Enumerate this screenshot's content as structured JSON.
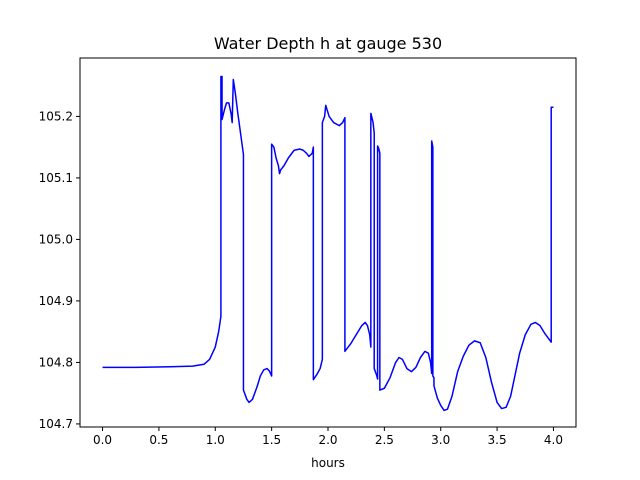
{
  "chart_data": {
    "type": "line",
    "title": "Water Depth h at gauge 530",
    "xlabel": "hours",
    "ylabel": "",
    "xlim": [
      -0.2,
      4.2
    ],
    "ylim": [
      104.695,
      105.295
    ],
    "x_ticks": [
      0.0,
      0.5,
      1.0,
      1.5,
      2.0,
      2.5,
      3.0,
      3.5,
      4.0
    ],
    "x_tick_labels": [
      "0.0",
      "0.5",
      "1.0",
      "1.5",
      "2.0",
      "2.5",
      "3.0",
      "3.5",
      "4.0"
    ],
    "y_ticks": [
      104.7,
      104.8,
      104.9,
      105.0,
      105.1,
      105.2
    ],
    "y_tick_labels": [
      "104.7",
      "104.8",
      "104.9",
      "105.0",
      "105.1",
      "105.2"
    ],
    "grid": false,
    "series": [
      {
        "color": "#0000ff",
        "points": [
          [
            0.0,
            104.792
          ],
          [
            0.3,
            104.792
          ],
          [
            0.6,
            104.793
          ],
          [
            0.8,
            104.794
          ],
          [
            0.9,
            104.797
          ],
          [
            0.95,
            104.805
          ],
          [
            1.0,
            104.825
          ],
          [
            1.03,
            104.85
          ],
          [
            1.05,
            104.875
          ],
          [
            1.05,
            105.265
          ],
          [
            1.06,
            105.265
          ],
          [
            1.06,
            105.195
          ],
          [
            1.08,
            105.21
          ],
          [
            1.1,
            105.222
          ],
          [
            1.12,
            105.222
          ],
          [
            1.14,
            105.205
          ],
          [
            1.15,
            105.19
          ],
          [
            1.16,
            105.26
          ],
          [
            1.18,
            105.235
          ],
          [
            1.2,
            105.205
          ],
          [
            1.23,
            105.165
          ],
          [
            1.25,
            105.138
          ],
          [
            1.25,
            104.755
          ],
          [
            1.28,
            104.74
          ],
          [
            1.3,
            104.735
          ],
          [
            1.33,
            104.74
          ],
          [
            1.37,
            104.76
          ],
          [
            1.4,
            104.778
          ],
          [
            1.43,
            104.788
          ],
          [
            1.46,
            104.79
          ],
          [
            1.48,
            104.786
          ],
          [
            1.5,
            104.778
          ],
          [
            1.5,
            105.155
          ],
          [
            1.52,
            105.15
          ],
          [
            1.54,
            105.132
          ],
          [
            1.56,
            105.12
          ],
          [
            1.57,
            105.107
          ],
          [
            1.58,
            105.113
          ],
          [
            1.61,
            105.12
          ],
          [
            1.65,
            105.133
          ],
          [
            1.7,
            105.145
          ],
          [
            1.75,
            105.147
          ],
          [
            1.78,
            105.145
          ],
          [
            1.81,
            105.14
          ],
          [
            1.83,
            105.135
          ],
          [
            1.86,
            105.14
          ],
          [
            1.87,
            105.15
          ],
          [
            1.87,
            104.772
          ],
          [
            1.9,
            104.78
          ],
          [
            1.93,
            104.79
          ],
          [
            1.95,
            104.805
          ],
          [
            1.95,
            105.19
          ],
          [
            1.97,
            105.2
          ],
          [
            1.98,
            105.218
          ],
          [
            1.99,
            105.212
          ],
          [
            2.01,
            105.2
          ],
          [
            2.05,
            105.19
          ],
          [
            2.1,
            105.185
          ],
          [
            2.13,
            105.19
          ],
          [
            2.15,
            105.198
          ],
          [
            2.15,
            104.818
          ],
          [
            2.2,
            104.83
          ],
          [
            2.25,
            104.845
          ],
          [
            2.3,
            104.86
          ],
          [
            2.33,
            104.865
          ],
          [
            2.35,
            104.86
          ],
          [
            2.37,
            104.845
          ],
          [
            2.38,
            104.825
          ],
          [
            2.38,
            105.205
          ],
          [
            2.4,
            105.19
          ],
          [
            2.41,
            105.173
          ],
          [
            2.41,
            104.79
          ],
          [
            2.43,
            104.78
          ],
          [
            2.44,
            104.773
          ],
          [
            2.44,
            105.152
          ],
          [
            2.45,
            105.148
          ],
          [
            2.46,
            105.14
          ],
          [
            2.46,
            104.755
          ],
          [
            2.5,
            104.758
          ],
          [
            2.55,
            104.775
          ],
          [
            2.6,
            104.8
          ],
          [
            2.63,
            104.808
          ],
          [
            2.66,
            104.805
          ],
          [
            2.7,
            104.79
          ],
          [
            2.74,
            104.785
          ],
          [
            2.78,
            104.792
          ],
          [
            2.82,
            104.808
          ],
          [
            2.86,
            104.818
          ],
          [
            2.89,
            104.815
          ],
          [
            2.91,
            104.8
          ],
          [
            2.92,
            104.782
          ],
          [
            2.92,
            105.16
          ],
          [
            2.93,
            105.15
          ],
          [
            2.93,
            104.778
          ],
          [
            2.94,
            104.775
          ],
          [
            2.94,
            104.762
          ],
          [
            2.97,
            104.742
          ],
          [
            3.0,
            104.73
          ],
          [
            3.03,
            104.722
          ],
          [
            3.06,
            104.724
          ],
          [
            3.1,
            104.745
          ],
          [
            3.15,
            104.785
          ],
          [
            3.2,
            104.81
          ],
          [
            3.25,
            104.828
          ],
          [
            3.3,
            104.835
          ],
          [
            3.35,
            104.832
          ],
          [
            3.4,
            104.808
          ],
          [
            3.45,
            104.768
          ],
          [
            3.5,
            104.735
          ],
          [
            3.54,
            104.725
          ],
          [
            3.58,
            104.727
          ],
          [
            3.62,
            104.745
          ],
          [
            3.66,
            104.78
          ],
          [
            3.7,
            104.815
          ],
          [
            3.75,
            104.845
          ],
          [
            3.8,
            104.862
          ],
          [
            3.84,
            104.865
          ],
          [
            3.88,
            104.86
          ],
          [
            3.92,
            104.848
          ],
          [
            3.96,
            104.838
          ],
          [
            3.98,
            104.833
          ],
          [
            3.98,
            105.215
          ],
          [
            4.0,
            105.215
          ]
        ]
      }
    ]
  }
}
